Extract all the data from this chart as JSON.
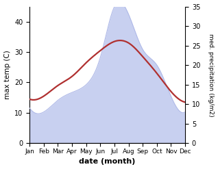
{
  "months": [
    "Jan",
    "Feb",
    "Mar",
    "Apr",
    "May",
    "Jun",
    "Jul",
    "Aug",
    "Sep",
    "Oct",
    "Nov",
    "Dec"
  ],
  "max_temp": [
    14.5,
    15.5,
    19.0,
    22.0,
    26.5,
    30.5,
    33.5,
    33.0,
    28.5,
    23.0,
    17.0,
    13.5
  ],
  "precipitation": [
    9,
    8,
    11,
    13,
    15,
    22,
    35,
    33,
    24,
    20,
    12,
    8
  ],
  "temp_color": "#b03030",
  "precip_fill_color": "#c8d0f0",
  "precip_edge_color": "#b0bae8",
  "background_color": "#ffffff",
  "xlabel": "date (month)",
  "ylabel_left": "max temp (C)",
  "ylabel_right": "med. precipitation (kg/m2)",
  "ylim_left": [
    0,
    45
  ],
  "ylim_right": [
    0,
    35
  ],
  "yticks_left": [
    0,
    10,
    20,
    30,
    40
  ],
  "yticks_right": [
    0,
    5,
    10,
    15,
    20,
    25,
    30,
    35
  ],
  "temp_linewidth": 1.6
}
